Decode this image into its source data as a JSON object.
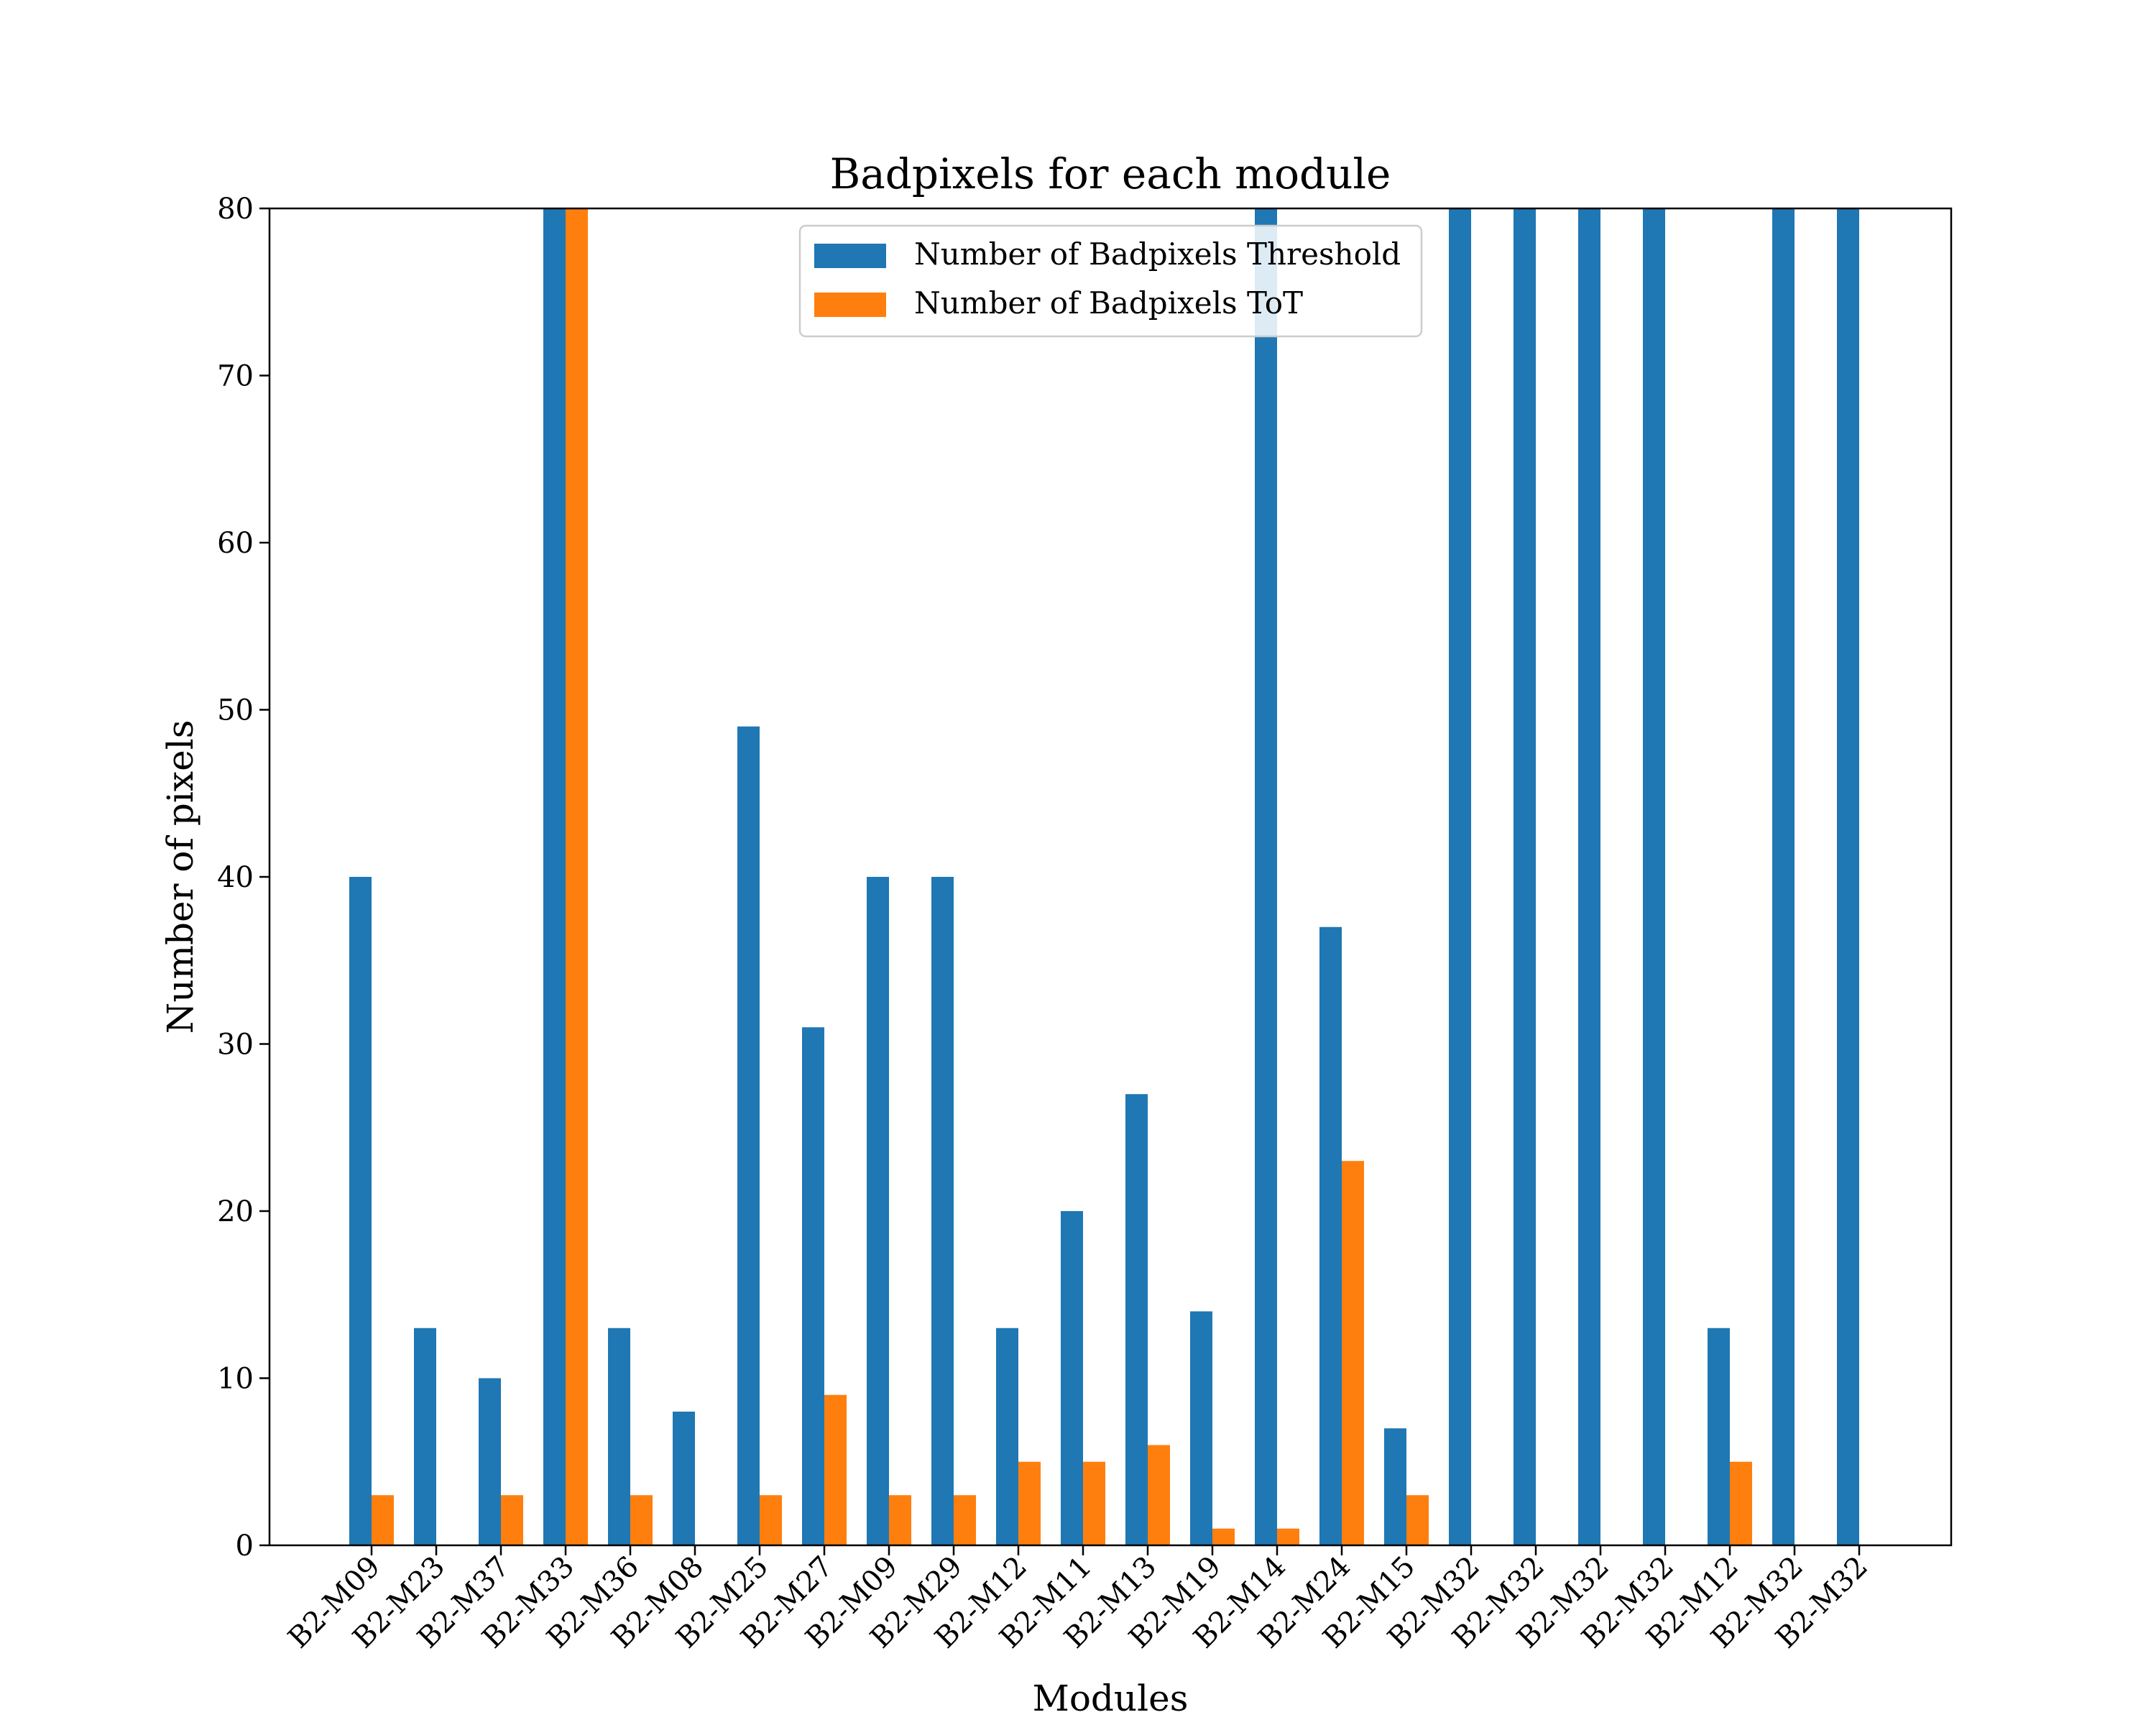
{
  "chart_data": {
    "type": "bar",
    "title": "Badpixels for each module",
    "xlabel": "Modules",
    "ylabel": "Number of pixels",
    "ylim": [
      0,
      80
    ],
    "yticks": [
      0,
      10,
      20,
      30,
      40,
      50,
      60,
      70,
      80
    ],
    "grid": false,
    "legend_position": "top-center",
    "categories": [
      "B2-M09",
      "B2-M23",
      "B2-M37",
      "B2-M33",
      "B2-M36",
      "B2-M08",
      "B2-M25",
      "B2-M27",
      "B2-M09",
      "B2-M29",
      "B2-M12",
      "B2-M11",
      "B2-M13",
      "B2-M19",
      "B2-M14",
      "B2-M24",
      "B2-M15",
      "B2-M32",
      "B2-M32",
      "B2-M32",
      "B2-M32",
      "B2-M12",
      "B2-M32",
      "B2-M32"
    ],
    "series": [
      {
        "name": "Number of Badpixels Threshold",
        "color": "#1f77b4",
        "values": [
          40,
          13,
          10,
          80,
          13,
          8,
          49,
          31,
          40,
          40,
          13,
          20,
          27,
          14,
          80,
          37,
          7,
          80,
          80,
          80,
          80,
          13,
          80,
          80
        ]
      },
      {
        "name": "Number of Badpixels ToT",
        "color": "#ff7f0e",
        "values": [
          3,
          0,
          3,
          80,
          3,
          0,
          3,
          9,
          3,
          3,
          5,
          5,
          6,
          1,
          1,
          23,
          3,
          0,
          0,
          0,
          0,
          5,
          0,
          0
        ]
      }
    ]
  }
}
